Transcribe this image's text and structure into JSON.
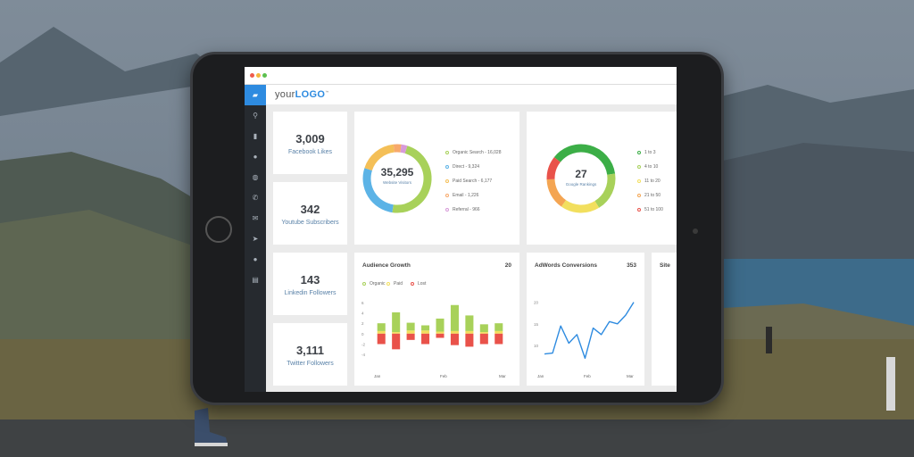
{
  "header": {
    "logo_prefix": "your",
    "logo_bold": "LOGO",
    "logo_tm": "™"
  },
  "sidebar": {
    "items": [
      {
        "icon": "dashboard-icon",
        "glyph": "▰"
      },
      {
        "icon": "search-icon",
        "glyph": "⚲"
      },
      {
        "icon": "bar-chart-icon",
        "glyph": "▮"
      },
      {
        "icon": "chat-icon",
        "glyph": "●"
      },
      {
        "icon": "globe-icon",
        "glyph": "◍"
      },
      {
        "icon": "phone-icon",
        "glyph": "✆"
      },
      {
        "icon": "mail-icon",
        "glyph": "✉"
      },
      {
        "icon": "send-icon",
        "glyph": "➤"
      },
      {
        "icon": "user-icon",
        "glyph": "●"
      },
      {
        "icon": "clipboard-icon",
        "glyph": "▤"
      }
    ]
  },
  "stats": [
    {
      "value": "3,009",
      "label": "Facebook Likes"
    },
    {
      "value": "342",
      "label": "Youtube Subscribers"
    },
    {
      "value": "143",
      "label": "Linkedin Followers"
    },
    {
      "value": "3,111",
      "label": "Twitter Followers"
    }
  ],
  "visitors": {
    "total": "35,295",
    "label": "Website Visitors",
    "legend": [
      {
        "label": "Organic Search - 16,028",
        "color": "#a8d15a",
        "value": 16028
      },
      {
        "label": "Direct - 9,324",
        "color": "#5cb3e6",
        "value": 9324
      },
      {
        "label": "Paid Search - 6,177",
        "color": "#f4bf57",
        "value": 6177
      },
      {
        "label": "Email - 1,226",
        "color": "#f7a96b",
        "value": 1226
      },
      {
        "label": "Referral - 966",
        "color": "#d79ad8",
        "value": 966
      }
    ]
  },
  "rankings": {
    "total": "27",
    "label": "Google Rankings",
    "legend": [
      {
        "label": "1 to 3",
        "color": "#3cae47",
        "value": 10
      },
      {
        "label": "4 to 10",
        "color": "#a8d15a",
        "value": 5
      },
      {
        "label": "11 to 20",
        "color": "#f2df5e",
        "value": 5
      },
      {
        "label": "21 to 50",
        "color": "#f4a552",
        "value": 4
      },
      {
        "label": "51 to 100",
        "color": "#e9524a",
        "value": 3
      }
    ]
  },
  "audience": {
    "title": "Audience Growth",
    "count": "20",
    "legend": [
      {
        "label": "Organic",
        "color": "#a8d15a"
      },
      {
        "label": "Paid",
        "color": "#f2df5e"
      },
      {
        "label": "Lost",
        "color": "#e9524a"
      }
    ]
  },
  "adwords": {
    "title": "AdWords Conversions",
    "count": "353"
  },
  "partial_card": {
    "title": "Site"
  },
  "chart_data": [
    {
      "type": "bar",
      "title": "Audience Growth",
      "xlabel": "",
      "ylabel": "",
      "x_ticks": [
        "Jan",
        "Feb",
        "Mar"
      ],
      "y_ticks": [
        "6",
        "4",
        "2",
        "0",
        "-2",
        "-4"
      ],
      "ylim": [
        -5,
        7
      ],
      "series": [
        {
          "name": "Organic",
          "values": [
            1.5,
            3.8,
            1.5,
            1.0,
            2.5,
            5.0,
            3.0,
            1.5,
            1.5
          ]
        },
        {
          "name": "Paid",
          "values": [
            0.5,
            0.3,
            0.6,
            0.6,
            0.4,
            0.5,
            0.5,
            0.3,
            0.5
          ]
        },
        {
          "name": "Lost",
          "values": [
            -2.0,
            -3.0,
            -1.2,
            -2.0,
            -0.8,
            -2.2,
            -2.5,
            -2.0,
            -2.0
          ]
        }
      ]
    },
    {
      "type": "line",
      "title": "AdWords Conversions",
      "xlabel": "",
      "ylabel": "",
      "x_ticks": [
        "Jan",
        "Feb",
        "Mar"
      ],
      "y_ticks": [
        "20",
        "15",
        "10"
      ],
      "ylim": [
        5,
        22
      ],
      "series": [
        {
          "name": "",
          "values": [
            8,
            8.2,
            14.5,
            10.5,
            12.5,
            7,
            14,
            12.5,
            15.5,
            15,
            17,
            20
          ]
        }
      ]
    }
  ]
}
